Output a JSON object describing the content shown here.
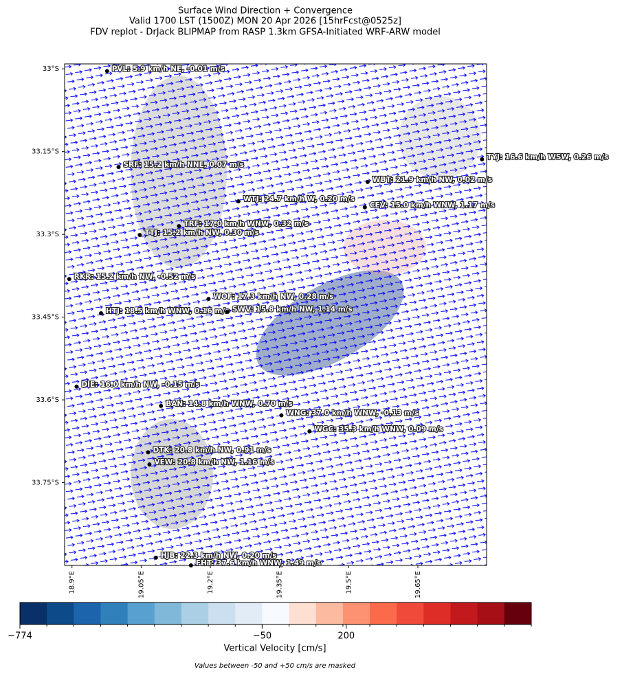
{
  "chart_data": {
    "type": "map",
    "title": [
      "Surface Wind Direction + Convergence",
      "Valid 1700 LST (1500Z) MON 20 Apr 2026 [15hrFcst@0525z]",
      "FDV replot - DrJack BLIPMAP from RASP 1.3km GFSA-Initiated WRF-ARW model"
    ],
    "xlim": [
      18.884,
      19.799
    ],
    "ylim": [
      -33.9,
      -32.991
    ],
    "xticks": [
      {
        "value": 18.9,
        "label": "18.9°E"
      },
      {
        "value": 19.05,
        "label": "19.05°E"
      },
      {
        "value": 19.2,
        "label": "19.2°E"
      },
      {
        "value": 19.35,
        "label": "19.35°E"
      },
      {
        "value": 19.5,
        "label": "19.5°E"
      },
      {
        "value": 19.65,
        "label": "19.65°E"
      }
    ],
    "yticks": [
      {
        "value": -33,
        "label": "33°S"
      },
      {
        "value": -33.15,
        "label": "33.15°S"
      },
      {
        "value": -33.3,
        "label": "33.3°S"
      },
      {
        "value": -33.45,
        "label": "33.45°S"
      },
      {
        "value": -33.6,
        "label": "33.6°S"
      },
      {
        "value": -33.75,
        "label": "33.75°S"
      }
    ],
    "stations": [
      {
        "label": "PVL: 5.9 km/h NE, -0.01 m/s",
        "lon": 18.976,
        "lat": -33.004
      },
      {
        "label": "SRF: 15.2 km/h NNE, 0.07 m/s",
        "lon": 19.001,
        "lat": -33.178
      },
      {
        "label": "WTJ: 24.7 km/h W, 0.20 m/s",
        "lon": 19.261,
        "lat": -33.24
      },
      {
        "label": "WBT: 21.9 km/h NW, 0.02 m/s",
        "lon": 19.541,
        "lat": -33.205
      },
      {
        "label": "TYJ: 16.6 km/h WSW, 0.26 m/s",
        "lon": 19.789,
        "lat": -33.164
      },
      {
        "label": "CEV: 15.0 km/h WNW, 1.17 m/s",
        "lon": 19.535,
        "lat": -33.251
      },
      {
        "label": "TRF: 17.0 km/h WNW, 0.32 m/s",
        "lon": 19.132,
        "lat": -33.285
      },
      {
        "label": "TTJ: 15.2 km/h NW, 0.30 m/s",
        "lon": 19.047,
        "lat": -33.301
      },
      {
        "label": "RKR: 15.2 km/h NW, -0.52 m/s",
        "lon": 18.894,
        "lat": -33.381
      },
      {
        "label": "WOF: 17.3 km/h NW, 0.28 m/s",
        "lon": 19.196,
        "lat": -33.417
      },
      {
        "label": "HTJ: 18.5 km/h WNW, 0.16 m/s",
        "lon": 18.963,
        "lat": -33.443
      },
      {
        "label": "SWV: 15.8 km/h NW, 1.14 m/s",
        "lon": 19.237,
        "lat": -33.44
      },
      {
        "label": "DIE: 16.0 km/h NW, -0.15 m/s",
        "lon": 18.91,
        "lat": -33.576
      },
      {
        "label": "BAN: 14.8 km/h WNW, 0.70 m/s",
        "lon": 19.093,
        "lat": -33.611
      },
      {
        "label": "WNG: 37.0 km/h WNW, -0.13 m/s",
        "lon": 19.354,
        "lat": -33.628
      },
      {
        "label": "WGC: 35.3 km/h WNW, 0.09 m/s",
        "lon": 19.415,
        "lat": -33.657
      },
      {
        "label": "DTK: 20.8 km/h NW, 0.91 m/s",
        "lon": 19.065,
        "lat": -33.695
      },
      {
        "label": "VEW: 20.8 km/h NW, 1.16 m/s",
        "lon": 19.068,
        "lat": -33.717
      },
      {
        "label": "HJB: 22.3 km/h NW, 0.20 m/s",
        "lon": 19.082,
        "lat": -33.886
      },
      {
        "label": "FHT: 37.6 km/h WNW, 1.49 m/s",
        "lon": 19.158,
        "lat": -33.9
      }
    ],
    "colorbar": {
      "label": "Vertical Velocity [cm/s]",
      "note": "Values between -50 and +50 cm/s are masked",
      "boundaries": [
        -774,
        -690,
        -610,
        -530,
        -450,
        -370,
        -290,
        -210,
        -130,
        -50,
        50,
        130,
        190,
        270,
        350,
        430,
        510,
        590,
        670,
        750
      ],
      "colors": [
        "#0a3069",
        "#0d4a8a",
        "#1c64ac",
        "#3080bc",
        "#58a0cf",
        "#80b8da",
        "#abd0e6",
        "#cbdff0",
        "#e1ecf7",
        "#f7fbff",
        "#fee0d2",
        "#fcbba1",
        "#fc9272",
        "#fb6a4a",
        "#ef4a3a",
        "#de2d26",
        "#c2191c",
        "#a50f15",
        "#67000d"
      ],
      "ticks": [
        {
          "value": -774,
          "label": "−774"
        },
        {
          "value": -50,
          "label": "−50"
        },
        {
          "value": 200,
          "label": "200"
        }
      ]
    }
  }
}
